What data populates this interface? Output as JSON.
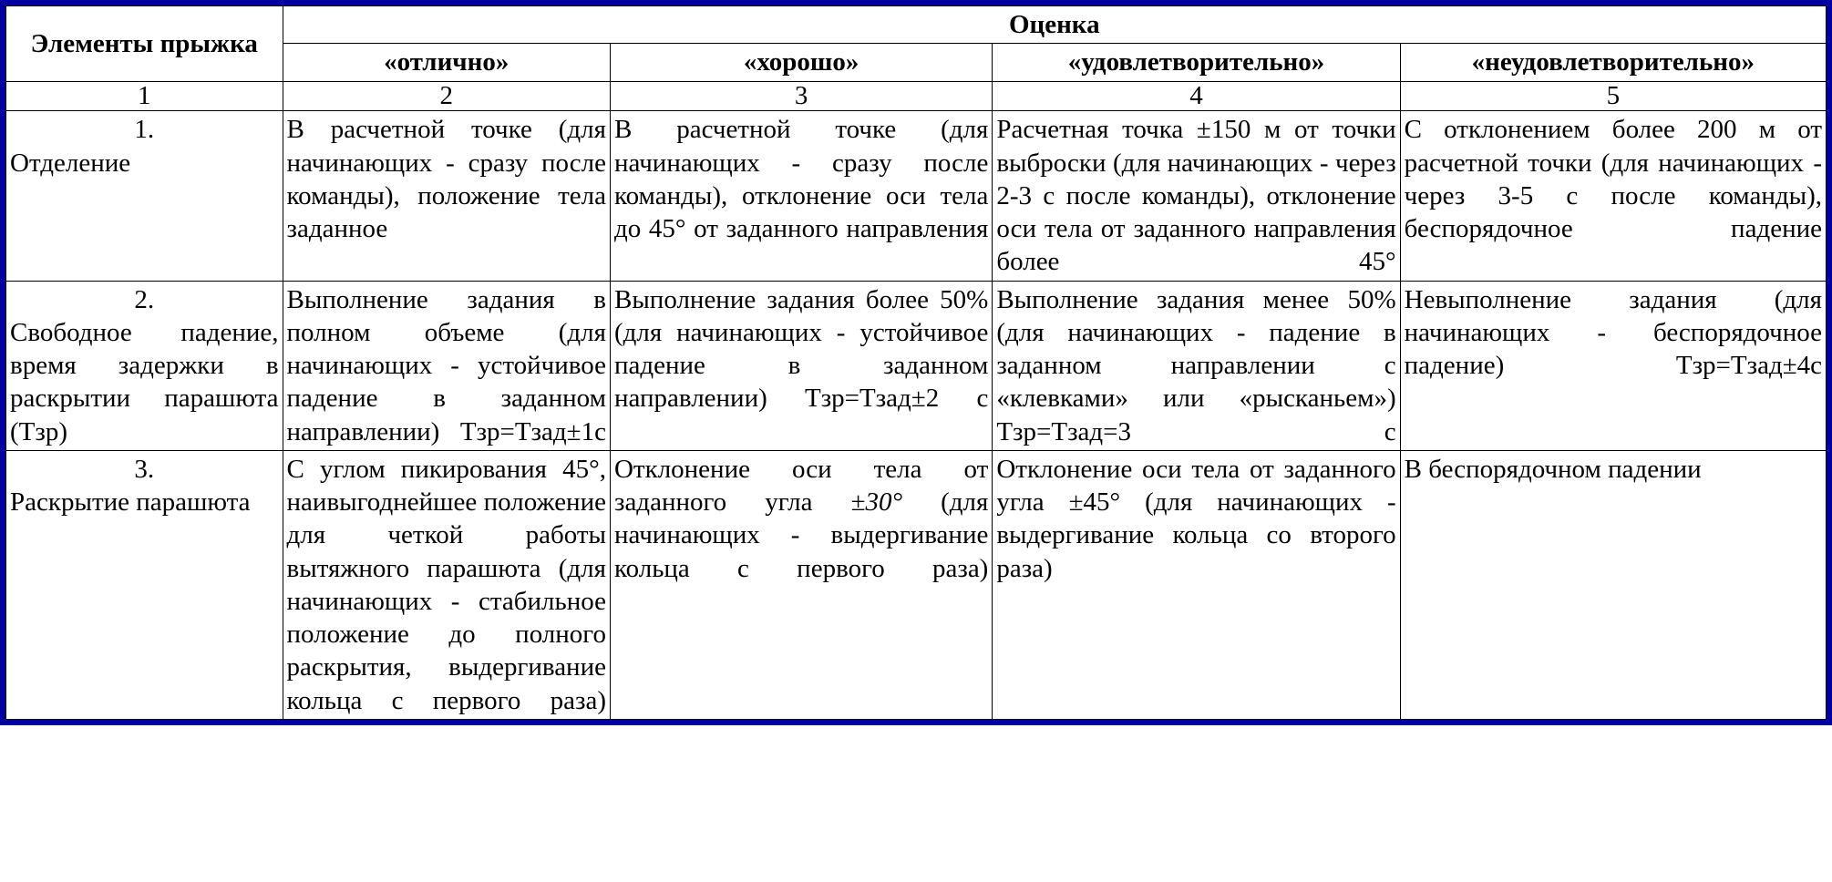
{
  "table": {
    "border_color": "#0000a0",
    "font_family": "Times New Roman",
    "base_fontsize_pt": 22,
    "text_color": "#000000",
    "background_color": "#ffffff",
    "header": {
      "row_label": "Элементы прыжка",
      "group_label": "Оценка",
      "grades": [
        "«отлично»",
        "«хорошо»",
        "«удовлетворительно»",
        "«неудовлетворительно»"
      ]
    },
    "col_numbers": [
      "1",
      "2",
      "3",
      "4",
      "5"
    ],
    "rows": [
      {
        "num": "1.",
        "element": "Отделение",
        "excellent": "В расчетной точке (для начинающих - сразу после команды), положение тела заданное",
        "good": "В расчетной точке (для начинающих - сразу после команды), отклонение оси тела до 45° от заданного направления",
        "satisfactory": "Расчетная точка ±150 м от точки выброски (для начинающих - через 2-3 с после команды), отклонение оси тела от заданного направления более 45°",
        "unsatisfactory": "С отклонением более 200 м от расчетной точки (для начинающих - через 3-5 с после команды), беспорядочное падение"
      },
      {
        "num": "2.",
        "element": "Свободное падение, время задержки в раскрытии парашюта (Тзр)",
        "excellent": "Выполнение задания в полном объеме (для начинающих - устойчивое падение в заданном направлении) Тзр=Тзад±1с",
        "good": "Выполнение задания более 50% (для начинающих - устойчивое падение в заданном направлении) Тзр=Тзад±2 с",
        "satisfactory": "Выполнение задания менее 50% (для начинающих - падение в заданном направлении с «клевками» или «рысканьем») Тзр=Тзад=3 с",
        "unsatisfactory": "Невыполнение задания (для начинающих - беспорядочное падение) Тзр=Тзад±4с"
      },
      {
        "num": "3.",
        "element": "Раскрытие парашюта",
        "excellent": "С углом пикирования 45°, наивыгоднейшее положение для четкой работы вытяжного парашюта (для начинающих - стабильное положение до полного раскрытия, выдергивание кольца с первого раза)",
        "good_html": "Отклонение оси тела от заданного угла <i>±30°</i> (для начинающих - выдергивание кольца с первого раза)",
        "satisfactory": "Отклонение оси тела от заданного угла ±45° (для начинающих - выдергивание кольца со второго раза)",
        "unsatisfactory_short": "В беспорядочном падении"
      }
    ]
  }
}
